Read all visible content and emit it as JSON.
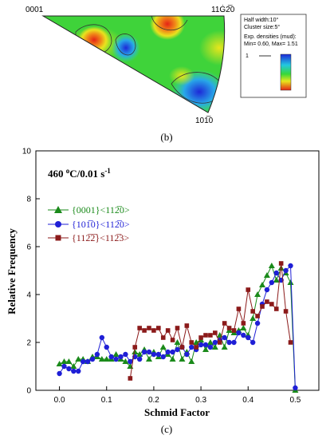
{
  "pole_figure": {
    "corner_left": "0001",
    "corner_right": "11Ġ2̅0",
    "corner_bottom": "101̅0",
    "legend_lines": [
      "Half width:10°",
      "Cluster size:5°",
      "Exp. densities (mud):",
      "Min= 0.60, Max= 1.51"
    ],
    "contour_level": "1",
    "caption": "(b)"
  },
  "chart_data": {
    "type": "line",
    "caption": "(c)",
    "annotation": "460 °C/0.01 s⁻¹",
    "xlabel": "Schmid Factor",
    "ylabel": "Relative Frequency",
    "xlim": [
      -0.05,
      0.55
    ],
    "ylim": [
      0,
      10
    ],
    "xticks": [
      "0.0",
      "0.1",
      "0.2",
      "0.3",
      "0.4",
      "0.5"
    ],
    "yticks": [
      "0",
      "2",
      "4",
      "6",
      "8",
      "10"
    ],
    "grid": false,
    "legend_position": "upper-left",
    "series": [
      {
        "name": "{0001}<112̅0>",
        "color": "#1a8a1a",
        "marker": "triangle",
        "x": [
          0.0,
          0.01,
          0.02,
          0.03,
          0.04,
          0.05,
          0.06,
          0.07,
          0.08,
          0.09,
          0.1,
          0.11,
          0.12,
          0.13,
          0.14,
          0.15,
          0.16,
          0.17,
          0.18,
          0.19,
          0.2,
          0.21,
          0.22,
          0.23,
          0.24,
          0.25,
          0.26,
          0.27,
          0.28,
          0.29,
          0.3,
          0.31,
          0.32,
          0.33,
          0.34,
          0.35,
          0.36,
          0.37,
          0.38,
          0.39,
          0.4,
          0.41,
          0.42,
          0.43,
          0.44,
          0.45,
          0.46,
          0.47,
          0.48,
          0.49,
          0.5
        ],
        "y": [
          1.1,
          1.2,
          1.2,
          1.0,
          1.3,
          1.3,
          1.2,
          1.4,
          1.4,
          1.3,
          1.3,
          1.3,
          1.5,
          1.3,
          1.2,
          1.0,
          1.6,
          1.5,
          1.7,
          1.3,
          1.6,
          1.4,
          1.8,
          1.5,
          1.3,
          2.0,
          1.3,
          1.6,
          1.2,
          2.0,
          2.1,
          1.7,
          2.0,
          1.8,
          2.3,
          1.8,
          2.5,
          2.4,
          2.5,
          2.6,
          2.3,
          3.0,
          4.0,
          4.4,
          4.8,
          5.2,
          4.6,
          5.1,
          4.9,
          4.5,
          0.0
        ]
      },
      {
        "name": "{101̅0}<112̅0>",
        "color": "#1f1fd6",
        "marker": "circle",
        "x": [
          0.0,
          0.01,
          0.02,
          0.03,
          0.04,
          0.05,
          0.06,
          0.07,
          0.08,
          0.09,
          0.1,
          0.11,
          0.12,
          0.13,
          0.14,
          0.15,
          0.16,
          0.17,
          0.18,
          0.19,
          0.2,
          0.21,
          0.22,
          0.23,
          0.24,
          0.25,
          0.26,
          0.27,
          0.28,
          0.29,
          0.3,
          0.31,
          0.32,
          0.33,
          0.34,
          0.35,
          0.36,
          0.37,
          0.38,
          0.39,
          0.4,
          0.41,
          0.42,
          0.43,
          0.44,
          0.45,
          0.46,
          0.47,
          0.48,
          0.49,
          0.5
        ],
        "y": [
          0.7,
          1.0,
          0.9,
          0.8,
          0.8,
          1.2,
          1.2,
          1.3,
          1.5,
          2.2,
          1.8,
          1.4,
          1.3,
          1.4,
          1.5,
          1.2,
          1.4,
          1.3,
          1.6,
          1.6,
          1.5,
          1.5,
          1.4,
          1.6,
          1.6,
          1.7,
          1.8,
          1.5,
          1.8,
          1.7,
          1.9,
          1.9,
          1.8,
          2.0,
          2.1,
          2.2,
          2.0,
          2.0,
          2.4,
          2.3,
          2.2,
          2.0,
          2.8,
          3.6,
          4.2,
          4.5,
          4.9,
          4.6,
          5.0,
          5.2,
          0.1
        ]
      },
      {
        "name": "{112̅2̅}<112̅3>",
        "color": "#8b1a1a",
        "marker": "square",
        "x": [
          0.15,
          0.16,
          0.17,
          0.18,
          0.19,
          0.2,
          0.21,
          0.22,
          0.23,
          0.24,
          0.25,
          0.26,
          0.27,
          0.28,
          0.29,
          0.3,
          0.31,
          0.32,
          0.33,
          0.34,
          0.35,
          0.36,
          0.37,
          0.38,
          0.39,
          0.4,
          0.41,
          0.42,
          0.43,
          0.44,
          0.45,
          0.46,
          0.47,
          0.48,
          0.49
        ],
        "y": [
          0.5,
          1.8,
          2.6,
          2.5,
          2.6,
          2.5,
          2.6,
          2.2,
          2.5,
          2.1,
          2.6,
          1.8,
          2.7,
          2.0,
          1.8,
          2.2,
          2.3,
          2.3,
          2.4,
          2.0,
          2.8,
          2.6,
          2.5,
          3.4,
          2.8,
          4.2,
          3.3,
          3.1,
          3.5,
          3.7,
          3.6,
          3.4,
          5.3,
          3.3,
          2.0
        ]
      }
    ]
  }
}
